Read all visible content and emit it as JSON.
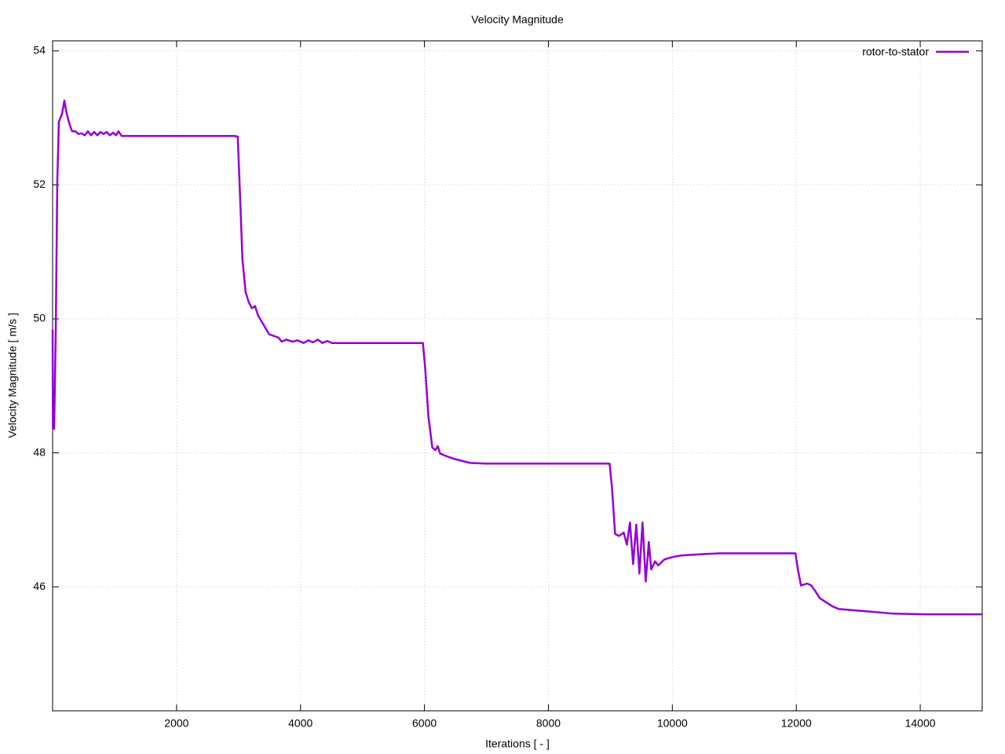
{
  "chart_data": {
    "type": "line",
    "title": "Velocity Magnitude",
    "x_label": "Iterations [ - ]",
    "y_label": "Velocity Magnitude [ m/s ]",
    "xlim": [
      0,
      15000
    ],
    "ylim": [
      44.15,
      54.15
    ],
    "xticks": [
      2000,
      4000,
      6000,
      8000,
      10000,
      12000,
      14000
    ],
    "yticks": [
      46,
      48,
      50,
      52,
      54
    ],
    "grid": true,
    "legend": "top-right",
    "series": [
      {
        "name": "rotor-to-stator",
        "color": "#9400d3",
        "x": [
          0,
          5,
          25,
          51,
          76,
          101,
          152,
          190,
          228,
          278,
          316,
          367,
          418,
          468,
          519,
          570,
          620,
          671,
          722,
          772,
          823,
          873,
          924,
          975,
          1025,
          1063,
          1114,
          2937,
          2987,
          3025,
          3063,
          3114,
          3165,
          3215,
          3266,
          3316,
          3494,
          3646,
          3696,
          3772,
          3873,
          3949,
          4051,
          4127,
          4203,
          4278,
          4354,
          4430,
          4506,
          4582,
          5975,
          6013,
          6063,
          6127,
          6177,
          6215,
          6253,
          6329,
          6481,
          6734,
          6987,
          8987,
          9025,
          9076,
          9139,
          9215,
          9266,
          9316,
          9367,
          9418,
          9468,
          9519,
          9570,
          9620,
          9658,
          9721,
          9772,
          9873,
          10025,
          10152,
          10532,
          10759,
          11987,
          12025,
          12076,
          12177,
          12241,
          12304,
          12380,
          12481,
          12582,
          12683,
          12810,
          13063,
          13570,
          14076,
          15000
        ],
        "values": [
          49.84,
          48.36,
          48.36,
          49.84,
          52.06,
          52.94,
          53.06,
          53.26,
          53.06,
          52.89,
          52.8,
          52.8,
          52.76,
          52.77,
          52.74,
          52.8,
          52.74,
          52.79,
          52.74,
          52.79,
          52.76,
          52.79,
          52.74,
          52.78,
          52.74,
          52.8,
          52.73,
          52.73,
          52.72,
          51.83,
          50.89,
          50.4,
          50.25,
          50.16,
          50.19,
          50.05,
          49.77,
          49.72,
          49.66,
          49.69,
          49.66,
          49.68,
          49.64,
          49.68,
          49.65,
          49.69,
          49.64,
          49.67,
          49.64,
          49.64,
          49.64,
          49.25,
          48.55,
          48.08,
          48.04,
          48.1,
          47.99,
          47.96,
          47.91,
          47.85,
          47.84,
          47.84,
          47.49,
          46.79,
          46.76,
          46.81,
          46.63,
          46.96,
          46.34,
          46.93,
          46.2,
          46.96,
          46.08,
          46.67,
          46.26,
          46.38,
          46.32,
          46.41,
          46.45,
          46.47,
          46.49,
          46.5,
          46.5,
          46.26,
          46.02,
          46.05,
          46.02,
          45.94,
          45.83,
          45.77,
          45.71,
          45.67,
          45.66,
          45.64,
          45.6,
          45.59,
          45.59
        ]
      }
    ]
  }
}
